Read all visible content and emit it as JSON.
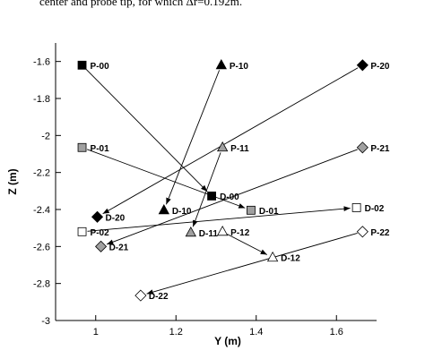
{
  "chart_data": {
    "type": "scatter",
    "caption": "center and probe tip, for which Δr=0.192m.",
    "x_label": "Y (m)",
    "y_label": "Z (m)",
    "xlim": [
      0.9,
      1.7
    ],
    "xticks": [
      1,
      1.2,
      1.4,
      1.6
    ],
    "ylim": [
      -3,
      -1.5
    ],
    "yticks": [
      -3,
      -2.8,
      -2.6,
      -2.4,
      -2.2,
      -2,
      -1.8,
      -1.6
    ],
    "pairs": [
      {
        "marker": "square",
        "color": "#000000",
        "probe": {
          "label": "P-00",
          "x": 0.966,
          "y": -1.62
        },
        "target": {
          "label": "D-00",
          "x": 1.289,
          "y": -2.327
        }
      },
      {
        "marker": "square",
        "color": "#a0a0a0",
        "probe": {
          "label": "P-01",
          "x": 0.966,
          "y": -2.065
        },
        "target": {
          "label": "D-01",
          "x": 1.387,
          "y": -2.404
        }
      },
      {
        "marker": "square",
        "color": "#ffffff",
        "probe": {
          "label": "P-02",
          "x": 0.966,
          "y": -2.52
        },
        "target": {
          "label": "D-02",
          "x": 1.65,
          "y": -2.39
        }
      },
      {
        "marker": "triangle",
        "color": "#000000",
        "probe": {
          "label": "P-10",
          "x": 1.313,
          "y": -1.62
        },
        "target": {
          "label": "D-10",
          "x": 1.17,
          "y": -2.404
        }
      },
      {
        "marker": "triangle",
        "color": "#a0a0a0",
        "probe": {
          "label": "P-11",
          "x": 1.316,
          "y": -2.065
        },
        "target": {
          "label": "D-11",
          "x": 1.237,
          "y": -2.525
        }
      },
      {
        "marker": "triangle",
        "color": "#ffffff",
        "probe": {
          "label": "P-12",
          "x": 1.316,
          "y": -2.52
        },
        "target": {
          "label": "D-12",
          "x": 1.441,
          "y": -2.66
        }
      },
      {
        "marker": "diamond",
        "color": "#000000",
        "probe": {
          "label": "P-20",
          "x": 1.665,
          "y": -1.62
        },
        "target": {
          "label": "D-20",
          "x": 1.004,
          "y": -2.44
        }
      },
      {
        "marker": "diamond",
        "color": "#a0a0a0",
        "probe": {
          "label": "P-21",
          "x": 1.665,
          "y": -2.065
        },
        "target": {
          "label": "D-21",
          "x": 1.013,
          "y": -2.6
        }
      },
      {
        "marker": "diamond",
        "color": "#ffffff",
        "probe": {
          "label": "P-22",
          "x": 1.665,
          "y": -2.52
        },
        "target": {
          "label": "D-22",
          "x": 1.112,
          "y": -2.865
        }
      }
    ]
  }
}
